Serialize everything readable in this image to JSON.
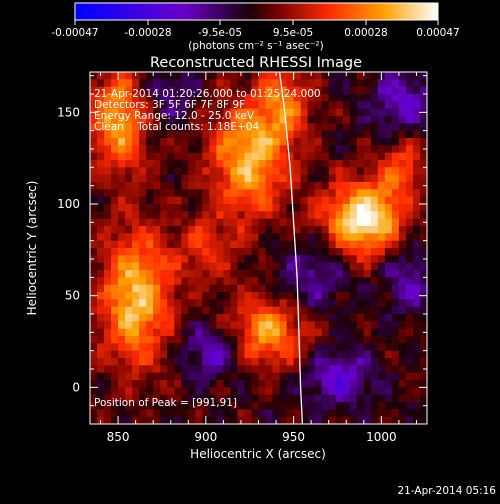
{
  "colorbar": {
    "tick_labels": [
      "-0.00047",
      "-0.00028",
      "-9.5e-05",
      "9.5e-05",
      "0.00028",
      "0.00047"
    ],
    "unit_label": "(photons cm⁻² s⁻¹ asec⁻²)"
  },
  "chart_data": {
    "type": "heatmap",
    "title": "Reconstructed RHESSI Image",
    "xlabel": "Heliocentric X (arcsec)",
    "ylabel": "Heliocentric Y (arcsec)",
    "xlim": [
      834,
      1026
    ],
    "ylim": [
      -20,
      172
    ],
    "x_ticks": [
      850,
      900,
      950,
      1000
    ],
    "y_ticks": [
      0,
      50,
      100,
      150
    ],
    "colorbar_range": [
      -0.00047,
      0.00047
    ],
    "peak": [
      991,
      91
    ],
    "limb_curve_x": [
      942,
      945,
      948,
      950,
      952,
      953,
      954,
      955
    ],
    "limb_curve_y": [
      172,
      150,
      120,
      90,
      60,
      30,
      0,
      -20
    ],
    "annotations": [
      "21-Apr-2014 01:20:26.000 to 01:25:24.000",
      "Detectors: 3F 5F 6F 7F 8F 9F",
      "Energy Range: 12.0 - 25.0 keV",
      "Clean    Total counts: 1.18E+04",
      "Position of Peak = [991,91]"
    ],
    "sources": [
      {
        "x": 990,
        "y": 92,
        "amp": 0.00047,
        "sx": 16,
        "sy": 14
      },
      {
        "x": 925,
        "y": 125,
        "amp": 0.00036,
        "sx": 16,
        "sy": 22
      },
      {
        "x": 860,
        "y": 48,
        "amp": 0.00038,
        "sx": 14,
        "sy": 26
      },
      {
        "x": 850,
        "y": 145,
        "amp": 0.00033,
        "sx": 12,
        "sy": 20
      },
      {
        "x": 935,
        "y": 30,
        "amp": 0.00032,
        "sx": 16,
        "sy": 14
      },
      {
        "x": 945,
        "y": 155,
        "amp": 0.00024,
        "sx": 10,
        "sy": 14
      },
      {
        "x": 1012,
        "y": 120,
        "amp": 0.0002,
        "sx": 10,
        "sy": 12
      },
      {
        "x": 900,
        "y": 75,
        "amp": 0.00015,
        "sx": 14,
        "sy": 14
      },
      {
        "x": 975,
        "y": 5,
        "amp": -0.00022,
        "sx": 14,
        "sy": 10
      },
      {
        "x": 905,
        "y": 20,
        "amp": -0.00022,
        "sx": 12,
        "sy": 10
      },
      {
        "x": 1012,
        "y": 155,
        "amp": -0.0002,
        "sx": 12,
        "sy": 12
      },
      {
        "x": 960,
        "y": 60,
        "amp": -0.00016,
        "sx": 14,
        "sy": 14
      },
      {
        "x": 880,
        "y": 160,
        "amp": -0.00014,
        "sx": 10,
        "sy": 10
      },
      {
        "x": 1015,
        "y": 60,
        "amp": -0.00016,
        "sx": 10,
        "sy": 14
      }
    ]
  },
  "timestamp": "21-Apr-2014 05:16"
}
